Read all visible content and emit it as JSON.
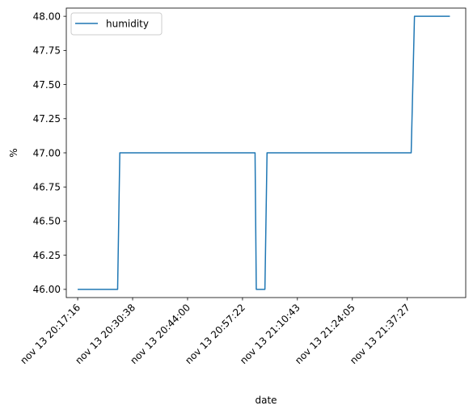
{
  "chart_data": {
    "type": "line",
    "xlabel": "date",
    "ylabel": "%",
    "legend": {
      "placement": "top-left"
    },
    "grid": false,
    "ylim": [
      45.94,
      48.06
    ],
    "yticks": [
      46.0,
      46.25,
      46.5,
      46.75,
      47.0,
      47.25,
      47.5,
      47.75,
      48.0
    ],
    "ytick_labels": [
      "46.00",
      "46.25",
      "46.50",
      "46.75",
      "47.00",
      "47.25",
      "47.50",
      "47.75",
      "48.00"
    ],
    "xlim": [
      "nov 13 20:14:30",
      "nov 13 21:51:40"
    ],
    "xticks": [
      "nov 13 20:17:16",
      "nov 13 20:30:38",
      "nov 13 20:44:00",
      "nov 13 20:57:22",
      "nov 13 21:10:43",
      "nov 13 21:24:05",
      "nov 13 21:37:27"
    ],
    "series": [
      {
        "name": "humidity",
        "color": "#1f77b4",
        "points": [
          {
            "x": "nov 13 20:17:16",
            "y": 46
          },
          {
            "x": "nov 13 20:26:59",
            "y": 46
          },
          {
            "x": "nov 13 20:27:31",
            "y": 47
          },
          {
            "x": "nov 13 21:00:25",
            "y": 47
          },
          {
            "x": "nov 13 21:00:43",
            "y": 46
          },
          {
            "x": "nov 13 21:02:49",
            "y": 46
          },
          {
            "x": "nov 13 21:03:20",
            "y": 47
          },
          {
            "x": "nov 13 21:38:24",
            "y": 47
          },
          {
            "x": "nov 13 21:39:12",
            "y": 48
          },
          {
            "x": "nov 13 21:47:49",
            "y": 48
          }
        ]
      }
    ]
  }
}
